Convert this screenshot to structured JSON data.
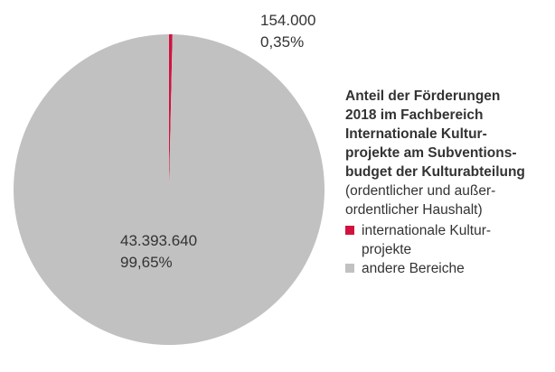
{
  "chart_data": {
    "type": "pie",
    "title": "Anteil der Förderungen\n2018 im Fachbereich\nInternationale Kultur-\nprojekte am Subventions-\nbudget der Kulturabteilung",
    "subtitle": "(ordentlicher und außer-\nordentlicher Haushalt)",
    "categories": [
      "internationale Kultur-\nprojekte",
      "andere Bereiche"
    ],
    "values": [
      154000,
      43393640
    ],
    "value_labels": [
      "154.000",
      "43.393.640"
    ],
    "percentages": [
      0.35,
      99.65
    ],
    "percentage_labels": [
      "0,35%",
      "99,65%"
    ],
    "colors": [
      "#d1123f",
      "#c1c1c1"
    ]
  }
}
